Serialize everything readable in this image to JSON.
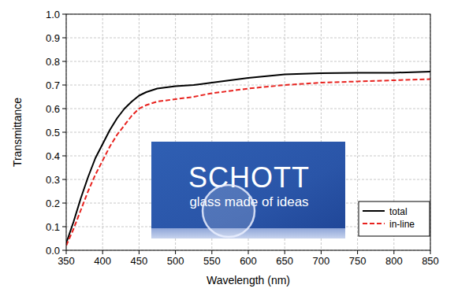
{
  "chart_data": {
    "type": "line",
    "x_label": "Wavelength (nm)",
    "y_label": "Transmittance",
    "annotations": [
      "SCHOTT",
      "glass made of ideas"
    ],
    "x": [
      350,
      360,
      370,
      380,
      390,
      400,
      410,
      420,
      430,
      440,
      450,
      460,
      475,
      500,
      525,
      550,
      600,
      650,
      700,
      750,
      800,
      850
    ],
    "series": [
      {
        "name": "total",
        "color": "#000000",
        "line_style": "solid",
        "values": [
          0.03,
          0.12,
          0.22,
          0.31,
          0.39,
          0.45,
          0.51,
          0.56,
          0.6,
          0.63,
          0.655,
          0.67,
          0.685,
          0.695,
          0.7,
          0.71,
          0.73,
          0.745,
          0.75,
          0.752,
          0.752,
          0.757
        ]
      },
      {
        "name": "in-line",
        "color": "#e8231f",
        "line_style": "dashed",
        "values": [
          0.02,
          0.09,
          0.17,
          0.25,
          0.32,
          0.38,
          0.44,
          0.49,
          0.53,
          0.57,
          0.6,
          0.615,
          0.63,
          0.64,
          0.65,
          0.665,
          0.685,
          0.7,
          0.71,
          0.715,
          0.72,
          0.725
        ]
      }
    ],
    "xlim": [
      350,
      850
    ],
    "xticks": [
      350,
      400,
      450,
      500,
      550,
      600,
      650,
      700,
      750,
      800,
      850
    ],
    "ylim": [
      0,
      1
    ],
    "yticks": [
      {
        "value": 0,
        "label": "0.0"
      },
      {
        "value": 0.1,
        "label": "0.1"
      },
      {
        "value": 0.2,
        "label": "0.2"
      },
      {
        "value": 0.3,
        "label": "0.3"
      },
      {
        "value": 0.4,
        "label": "0.4"
      },
      {
        "value": 0.5,
        "label": "0.5"
      },
      {
        "value": 0.6,
        "label": "0.6"
      },
      {
        "value": 0.7,
        "label": "0.7"
      },
      {
        "value": 0.8,
        "label": "0.8"
      },
      {
        "value": 0.9,
        "label": "0.9"
      },
      {
        "value": 1,
        "label": "1.0"
      }
    ],
    "grid": true,
    "legend": "lower right"
  }
}
